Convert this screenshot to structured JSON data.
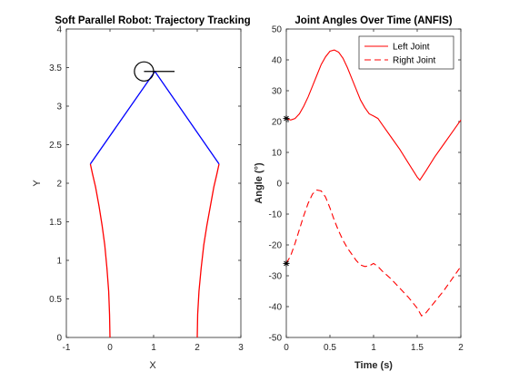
{
  "chart_data": [
    {
      "type": "line",
      "title": "Soft Parallel Robot: Trajectory Tracking",
      "xlabel": "X",
      "ylabel": "Y",
      "xlim": [
        -1,
        3
      ],
      "ylim": [
        0,
        4
      ],
      "xticks": [
        -1,
        0,
        1,
        2,
        3
      ],
      "yticks": [
        0,
        0.5,
        1,
        1.5,
        2,
        2.5,
        3,
        3.5,
        4
      ],
      "grid": false,
      "colors": {
        "soft_links": "#ff0000",
        "rigid_links": "#0000ff",
        "end_effector": "#000000"
      },
      "series": [
        {
          "style": "red solid",
          "x": [
            0.0,
            -0.01,
            -0.03,
            -0.07,
            -0.12,
            -0.18,
            -0.25,
            -0.33,
            -0.4,
            -0.45
          ],
          "y": [
            0.0,
            0.3,
            0.6,
            0.9,
            1.2,
            1.45,
            1.7,
            1.95,
            2.12,
            2.25
          ]
        },
        {
          "style": "red solid",
          "x": [
            2.0,
            2.01,
            2.04,
            2.09,
            2.15,
            2.22,
            2.3,
            2.38,
            2.45,
            2.5
          ],
          "y": [
            0.0,
            0.3,
            0.6,
            0.9,
            1.2,
            1.45,
            1.7,
            1.95,
            2.12,
            2.25
          ]
        },
        {
          "style": "blue solid",
          "x": [
            -0.45,
            1.03,
            2.5
          ],
          "y": [
            2.25,
            3.45,
            2.25
          ]
        }
      ],
      "end_effector": {
        "circle_center": [
          0.78,
          3.45
        ],
        "radius": 0.22,
        "line": [
          [
            0.78,
            3.45
          ],
          [
            1.48,
            3.45
          ]
        ]
      }
    },
    {
      "type": "line",
      "title": "Joint Angles Over Time (ANFIS)",
      "xlabel": "Time (s)",
      "ylabel": "Angle (°)",
      "xlim": [
        0,
        2
      ],
      "ylim": [
        -50,
        50
      ],
      "xticks": [
        0,
        0.5,
        1,
        1.5,
        2
      ],
      "yticks": [
        -50,
        -40,
        -30,
        -20,
        -10,
        0,
        10,
        20,
        30,
        40,
        50
      ],
      "grid": false,
      "legend_position": "top-right",
      "series": [
        {
          "name": "Left Joint",
          "color": "#ff0000",
          "dash": "solid",
          "x": [
            0,
            0.05,
            0.1,
            0.15,
            0.2,
            0.25,
            0.3,
            0.35,
            0.4,
            0.45,
            0.5,
            0.55,
            0.6,
            0.65,
            0.7,
            0.75,
            0.8,
            0.85,
            0.9,
            0.95,
            1.0,
            1.05,
            1.1,
            1.2,
            1.3,
            1.4,
            1.5,
            1.53,
            1.6,
            1.7,
            1.8,
            1.9,
            2.0
          ],
          "y": [
            21,
            20.5,
            21,
            22.5,
            25,
            28,
            31.5,
            35,
            38.5,
            41,
            42.8,
            43.2,
            42.5,
            40.5,
            37.5,
            34,
            30.5,
            27,
            24.5,
            22.5,
            21.8,
            21,
            19,
            15,
            11,
            6.5,
            2,
            1,
            4,
            8.5,
            12.5,
            16.5,
            20.5
          ]
        },
        {
          "name": "Right Joint",
          "color": "#ff0000",
          "dash": "dashed",
          "x": [
            0,
            0.05,
            0.1,
            0.15,
            0.2,
            0.25,
            0.3,
            0.35,
            0.4,
            0.45,
            0.5,
            0.55,
            0.6,
            0.65,
            0.7,
            0.75,
            0.8,
            0.85,
            0.9,
            0.95,
            1.0,
            1.05,
            1.1,
            1.2,
            1.3,
            1.4,
            1.5,
            1.55,
            1.6,
            1.7,
            1.8,
            1.9,
            2.0
          ],
          "y": [
            -26,
            -23.5,
            -19.5,
            -15,
            -10.5,
            -6.5,
            -3.5,
            -2.2,
            -2.5,
            -4.5,
            -8,
            -12,
            -15.5,
            -18.5,
            -21,
            -23,
            -25,
            -26.5,
            -27,
            -26.8,
            -26,
            -27,
            -28.5,
            -31,
            -34,
            -37,
            -40.5,
            -43,
            -42,
            -38.5,
            -35,
            -31,
            -27
          ]
        }
      ],
      "markers": [
        {
          "symbol": "asterisk",
          "x": 0,
          "y": 21
        },
        {
          "symbol": "asterisk",
          "x": 0,
          "y": -26
        }
      ]
    }
  ]
}
